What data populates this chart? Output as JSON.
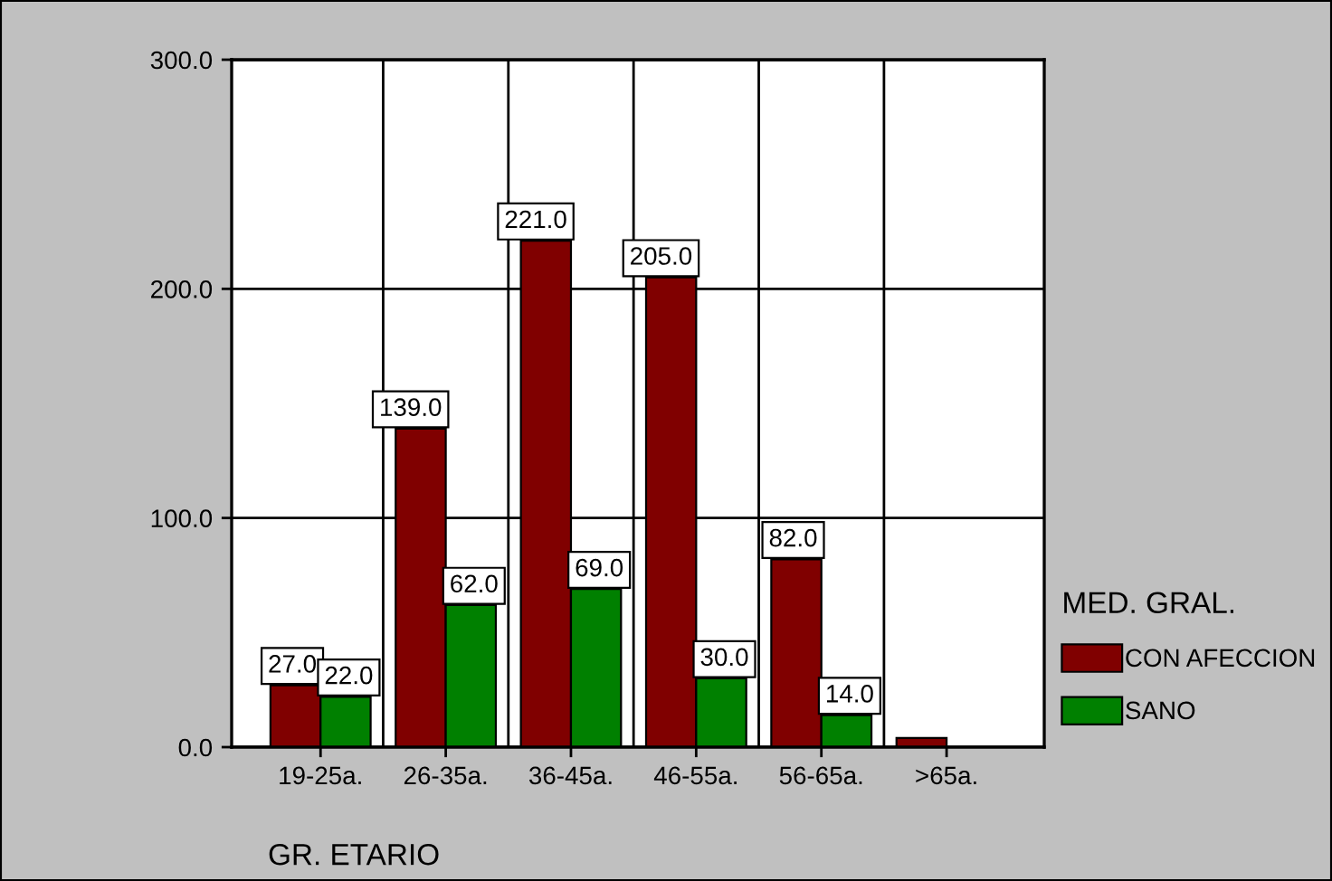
{
  "chart_data": {
    "type": "bar",
    "xlabel": "GR. ETARIO",
    "legend_title": "MED. GRAL.",
    "categories": [
      "19-25a.",
      "26-35a.",
      "36-45a.",
      "46-55a.",
      "56-65a.",
      ">65a."
    ],
    "series": [
      {
        "name": "CON AFECCION",
        "color": "#800000",
        "values": [
          27,
          139,
          221,
          205,
          82,
          4
        ],
        "value_labels": [
          "27.0",
          "139.0",
          "221.0",
          "205.0",
          "82.0",
          null
        ]
      },
      {
        "name": "SANO",
        "color": "#008000",
        "values": [
          22,
          62,
          69,
          30,
          14,
          null
        ],
        "value_labels": [
          "22.0",
          "62.0",
          "69.0",
          "30.0",
          "14.0",
          null
        ]
      }
    ],
    "ylim": [
      0,
      300
    ],
    "yticks": [
      {
        "value": 0,
        "label": "0.0"
      },
      {
        "value": 100,
        "label": "100.0"
      },
      {
        "value": 200,
        "label": "200.0"
      },
      {
        "value": 300,
        "label": "300.0"
      }
    ],
    "grid": true,
    "legend": "right"
  }
}
